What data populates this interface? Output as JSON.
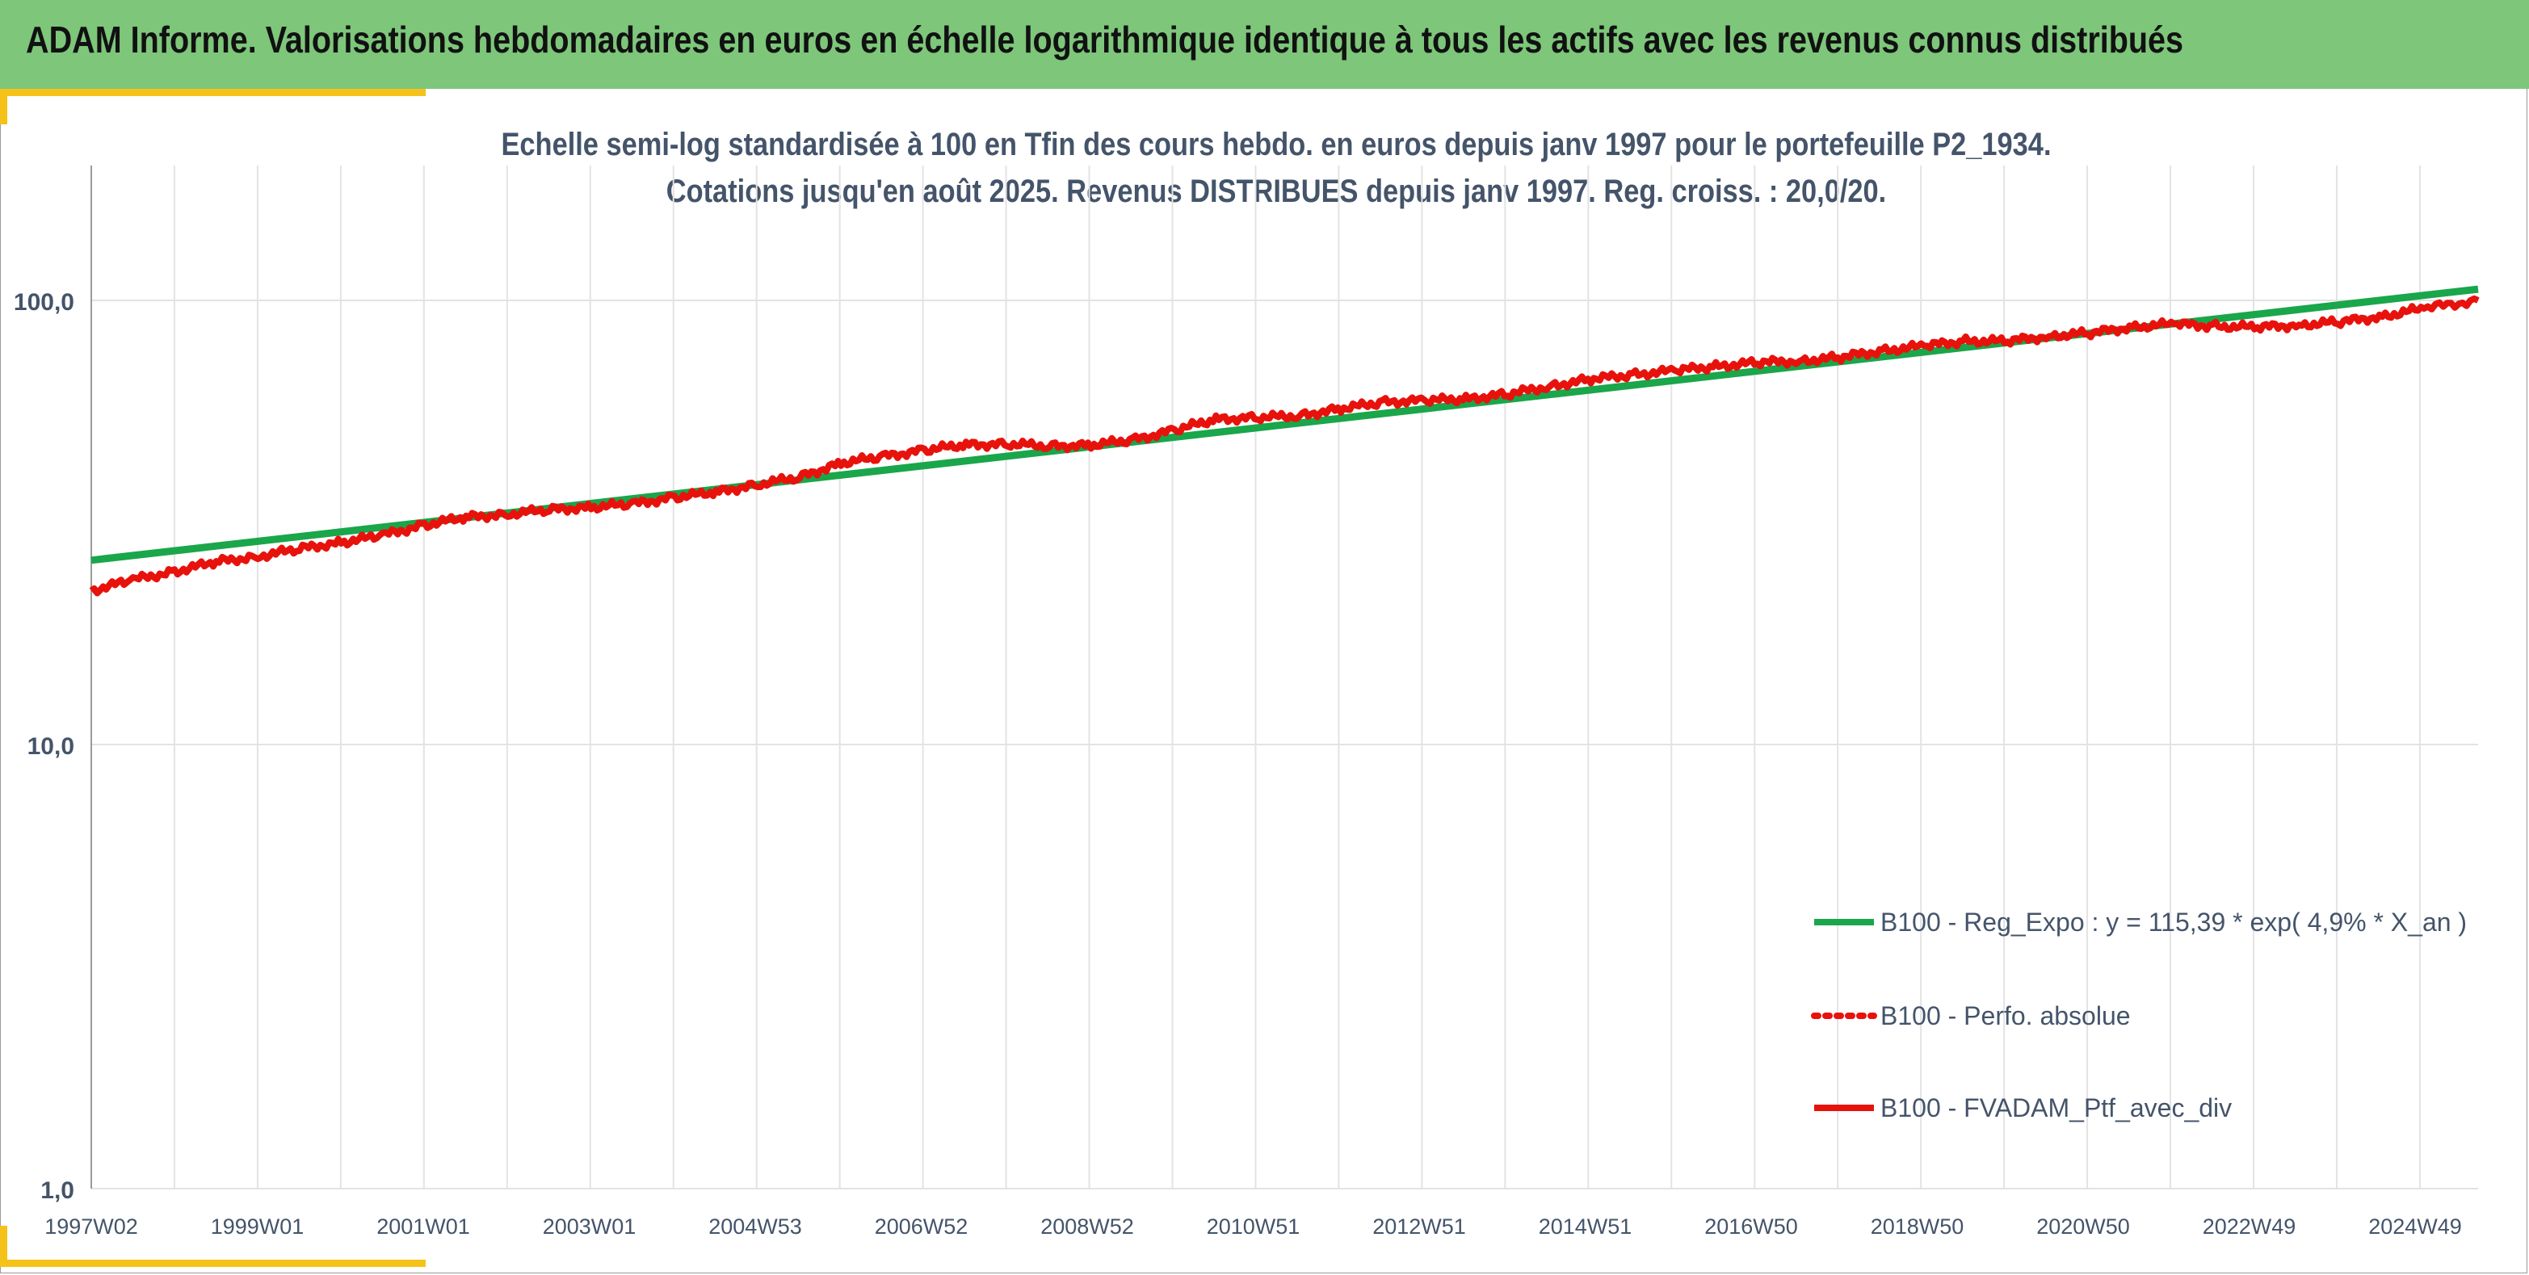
{
  "header": {
    "title": "ADAM Informe. Valorisations hebdomadaires en euros en échelle logarithmique identique à tous les actifs avec les revenus connus distribués"
  },
  "colors": {
    "header_bg": "#7dc67a",
    "accent_corner": "#f5c219",
    "regression_line": "#1aa64a",
    "portfolio_line": "#e8120c",
    "perf_absolue": "#e8120c",
    "grid": "#e3e3e3",
    "title_text": "#44546a"
  },
  "chart_data": {
    "type": "line",
    "title": "Echelle semi-log standardisée à 100 en Tfin des cours hebdo. en euros depuis janv 1997 pour le portefeuille P2_1934.",
    "subtitle": "Cotations jusqu'en août 2025. Revenus DISTRIBUES depuis janv 1997. Reg. croiss. : 20,0/20.",
    "yscale": "log",
    "ylim": [
      1,
      200
    ],
    "y_ticks": [
      "1,0",
      "10,0",
      "100,0"
    ],
    "x_range_years": [
      1997.0,
      2025.65
    ],
    "x_ticks": [
      "1997W02",
      "1999W01",
      "2001W01",
      "2003W01",
      "2004W53",
      "2006W52",
      "2008W52",
      "2010W51",
      "2012W51",
      "2014W51",
      "2016W50",
      "2018W50",
      "2020W50",
      "2022W49",
      "2024W49"
    ],
    "grid": "vertical",
    "legend_position": "bottom-right",
    "series": [
      {
        "name": "B100 - Reg_Expo : y = 115,39 * exp( 4,9% *  X_an )",
        "style": "solid",
        "color": "#1aa64a",
        "x": [
          1997.0,
          2025.65
        ],
        "y": [
          26.0,
          106.0
        ]
      },
      {
        "name": "B100 - Perfo. absolue",
        "style": "dotted",
        "color": "#e8120c",
        "x": [],
        "y": []
      },
      {
        "name": "B100 - FVADAM_Ptf_avec_div",
        "style": "solid",
        "color": "#e8120c",
        "x": [
          1997.0,
          1997.5,
          1998.0,
          1998.5,
          1999.0,
          1999.5,
          2000.0,
          2000.5,
          2001.0,
          2001.5,
          2002.0,
          2002.5,
          2003.0,
          2003.5,
          2004.0,
          2004.5,
          2005.0,
          2005.5,
          2006.0,
          2006.5,
          2007.0,
          2007.5,
          2008.0,
          2008.5,
          2009.0,
          2009.5,
          2010.0,
          2010.5,
          2011.0,
          2011.5,
          2012.0,
          2012.5,
          2013.0,
          2013.5,
          2014.0,
          2014.5,
          2015.0,
          2015.5,
          2016.0,
          2016.5,
          2017.0,
          2017.5,
          2018.0,
          2018.5,
          2019.0,
          2019.5,
          2020.0,
          2020.5,
          2021.0,
          2021.5,
          2022.0,
          2022.5,
          2023.0,
          2023.5,
          2024.0,
          2024.5,
          2025.0,
          2025.65
        ],
        "y": [
          22.2,
          23.5,
          24.5,
          25.8,
          26.5,
          27.6,
          28.5,
          29.6,
          31.2,
          32.5,
          33.0,
          33.8,
          34.2,
          34.8,
          36.0,
          37.0,
          38.5,
          40.0,
          43.0,
          44.5,
          46.0,
          47.3,
          47.5,
          47.0,
          47.2,
          48.5,
          51.0,
          54.0,
          54.5,
          55.0,
          57.0,
          59.0,
          59.5,
          60.0,
          61.5,
          64.0,
          66.5,
          68.0,
          69.5,
          71.0,
          72.5,
          73.0,
          74.5,
          77.0,
          79.0,
          81.0,
          81.0,
          83.0,
          84.5,
          87.0,
          88.5,
          87.5,
          87.0,
          88.0,
          89.5,
          92.0,
          96.0,
          100.0
        ]
      }
    ]
  }
}
